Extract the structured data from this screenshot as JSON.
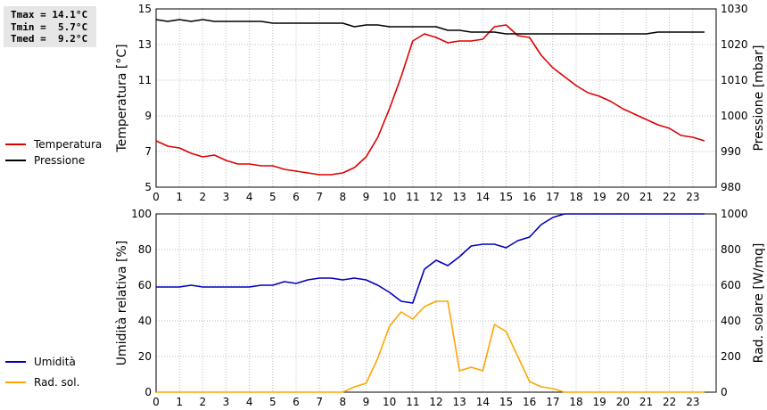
{
  "stats": {
    "tmax": "Tmax = 14.1°C",
    "tmin": "Tmin =  5.7°C",
    "tmed": "Tmed =  9.2°C"
  },
  "chart_data": [
    {
      "type": "line",
      "x_ticks": [
        "0",
        "1",
        "2",
        "3",
        "4",
        "5",
        "6",
        "7",
        "8",
        "9",
        "10",
        "11",
        "12",
        "13",
        "14",
        "15",
        "16",
        "17",
        "18",
        "19",
        "20",
        "21",
        "22",
        "23"
      ],
      "xlim": [
        0,
        24
      ],
      "ylabel": "Temperatura [°C]",
      "ylabel_right": "Pressione [mbar]",
      "ylim": [
        5,
        15
      ],
      "ylim_right": [
        980,
        1030
      ],
      "y_ticks": [
        "5",
        "7",
        "9",
        "11",
        "13",
        "15"
      ],
      "y_ticks_right": [
        "980",
        "990",
        "1000",
        "1010",
        "1020",
        "1030"
      ],
      "grid": true,
      "legend_position": "left",
      "series": [
        {
          "name": "Temperatura",
          "color": "#dd0000",
          "axis": "left",
          "x": [
            0,
            0.5,
            1,
            1.5,
            2,
            2.5,
            3,
            3.5,
            4,
            4.5,
            5,
            5.5,
            6,
            6.5,
            7,
            7.5,
            8,
            8.5,
            9,
            9.5,
            10,
            10.5,
            11,
            11.5,
            12,
            12.5,
            13,
            13.5,
            14,
            14.5,
            15,
            15.5,
            16,
            16.5,
            17,
            17.5,
            18,
            18.5,
            19,
            19.5,
            20,
            20.5,
            21,
            21.5,
            22,
            22.5,
            23,
            23.5
          ],
          "y": [
            7.6,
            7.3,
            7.2,
            6.9,
            6.7,
            6.8,
            6.5,
            6.3,
            6.3,
            6.2,
            6.2,
            6.0,
            5.9,
            5.8,
            5.7,
            5.7,
            5.8,
            6.1,
            6.7,
            7.8,
            9.4,
            11.2,
            13.2,
            13.6,
            13.4,
            13.1,
            13.2,
            13.2,
            13.3,
            14.0,
            14.1,
            13.5,
            13.4,
            12.4,
            11.7,
            11.2,
            10.7,
            10.3,
            10.1,
            9.8,
            9.4,
            9.1,
            8.8,
            8.5,
            8.3,
            7.9,
            7.8,
            7.6
          ]
        },
        {
          "name": "Pressione",
          "color": "#000000",
          "axis": "right",
          "x": [
            0,
            0.5,
            1,
            1.5,
            2,
            2.5,
            3,
            3.5,
            4,
            4.5,
            5,
            5.5,
            6,
            6.5,
            7,
            7.5,
            8,
            8.5,
            9,
            9.5,
            10,
            10.5,
            11,
            11.5,
            12,
            12.5,
            13,
            13.5,
            14,
            14.5,
            15,
            15.5,
            16,
            16.5,
            17,
            17.5,
            18,
            18.5,
            19,
            19.5,
            20,
            20.5,
            21,
            21.5,
            22,
            22.5,
            23,
            23.5
          ],
          "y": [
            1027,
            1026.5,
            1027,
            1026.5,
            1027,
            1026.5,
            1026.5,
            1026.5,
            1026.5,
            1026.5,
            1026,
            1026,
            1026,
            1026,
            1026,
            1026,
            1026,
            1025,
            1025.5,
            1025.5,
            1025,
            1025,
            1025,
            1025,
            1025,
            1024,
            1024,
            1023.5,
            1023.5,
            1023.5,
            1023,
            1023,
            1023,
            1023,
            1023,
            1023,
            1023,
            1023,
            1023,
            1023,
            1023,
            1023,
            1023,
            1023.5,
            1023.5,
            1023.5,
            1023.5,
            1023.5
          ]
        }
      ]
    },
    {
      "type": "line",
      "x_ticks": [
        "0",
        "1",
        "2",
        "3",
        "4",
        "5",
        "6",
        "7",
        "8",
        "9",
        "10",
        "11",
        "12",
        "13",
        "14",
        "15",
        "16",
        "17",
        "18",
        "19",
        "20",
        "21",
        "22",
        "23"
      ],
      "xlim": [
        0,
        24
      ],
      "ylabel": "Umidità relativa [%]",
      "ylabel_right": "Rad. solare [W/mq]",
      "ylim": [
        0,
        100
      ],
      "ylim_right": [
        0,
        1000
      ],
      "y_ticks": [
        "0",
        "20",
        "40",
        "60",
        "80",
        "100"
      ],
      "y_ticks_right": [
        "0",
        "200",
        "400",
        "600",
        "800",
        "1000"
      ],
      "grid": true,
      "legend_position": "left",
      "series": [
        {
          "name": "Umidità",
          "color": "#0000bb",
          "axis": "left",
          "x": [
            0,
            0.5,
            1,
            1.5,
            2,
            2.5,
            3,
            3.5,
            4,
            4.5,
            5,
            5.5,
            6,
            6.5,
            7,
            7.5,
            8,
            8.5,
            9,
            9.5,
            10,
            10.5,
            11,
            11.5,
            12,
            12.5,
            13,
            13.5,
            14,
            14.5,
            15,
            15.5,
            16,
            16.5,
            17,
            17.5,
            18,
            18.5,
            19,
            19.5,
            20,
            20.5,
            21,
            21.5,
            22,
            22.5,
            23,
            23.5
          ],
          "y": [
            59,
            59,
            59,
            60,
            59,
            59,
            59,
            59,
            59,
            60,
            60,
            62,
            61,
            63,
            64,
            64,
            63,
            64,
            63,
            60,
            56,
            51,
            50,
            69,
            74,
            71,
            76,
            82,
            83,
            83,
            81,
            85,
            87,
            94,
            98,
            100,
            100,
            100,
            100,
            100,
            100,
            100,
            100,
            100,
            100,
            100,
            100,
            100
          ]
        },
        {
          "name": "Rad. sol.",
          "color": "#ffa500",
          "axis": "right",
          "x": [
            0,
            0.5,
            1,
            1.5,
            2,
            2.5,
            3,
            3.5,
            4,
            4.5,
            5,
            5.5,
            6,
            6.5,
            7,
            7.5,
            8,
            8.5,
            9,
            9.5,
            10,
            10.5,
            11,
            11.5,
            12,
            12.5,
            13,
            13.5,
            14,
            14.5,
            15,
            15.5,
            16,
            16.5,
            17,
            17.5,
            18,
            18.5,
            19,
            19.5,
            20,
            20.5,
            21,
            21.5,
            22,
            22.5,
            23,
            23.5
          ],
          "y": [
            0,
            0,
            0,
            0,
            0,
            0,
            0,
            0,
            0,
            0,
            0,
            0,
            0,
            0,
            0,
            0,
            0,
            30,
            50,
            190,
            370,
            450,
            410,
            480,
            510,
            510,
            120,
            140,
            120,
            380,
            340,
            200,
            60,
            30,
            20,
            0,
            0,
            0,
            0,
            0,
            0,
            0,
            0,
            0,
            0,
            0,
            0,
            0
          ]
        }
      ]
    }
  ]
}
